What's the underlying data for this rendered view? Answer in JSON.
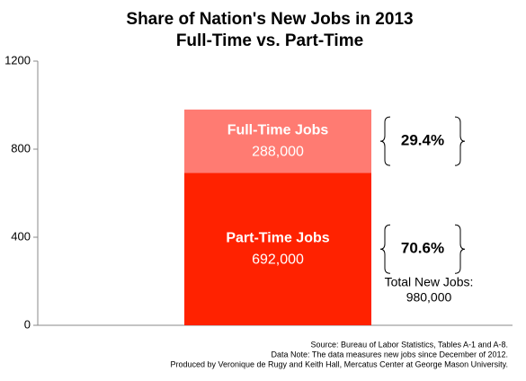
{
  "chart_data": {
    "type": "stacked_bar",
    "title": "Share of Nation's New Jobs in 2013",
    "subtitle": "Full-Time vs. Part-Time",
    "categories": [
      null
    ],
    "series": [
      {
        "name": "Part-Time Jobs",
        "color": "#ff2200",
        "values": [
          692
        ],
        "value_labels": [
          "692,000"
        ],
        "share_label": "70.6%"
      },
      {
        "name": "Full-Time Jobs",
        "color": "#ff7b72",
        "values": [
          288
        ],
        "value_labels": [
          "288,000"
        ],
        "share_label": "29.4%"
      }
    ],
    "ylim": [
      0,
      1200
    ],
    "yticks": [
      0,
      400,
      800,
      1200
    ],
    "annotations": [
      "Total New Jobs:",
      "980,000"
    ],
    "notes": [
      "Source: Bureau of Labor Statistics, Tables A-1 and A-8.",
      "Data Note: The data measures new jobs since December of 2012.",
      "Produced by Veronique de Rugy and Keith Hall, Mercatus Center at George Mason University."
    ]
  }
}
